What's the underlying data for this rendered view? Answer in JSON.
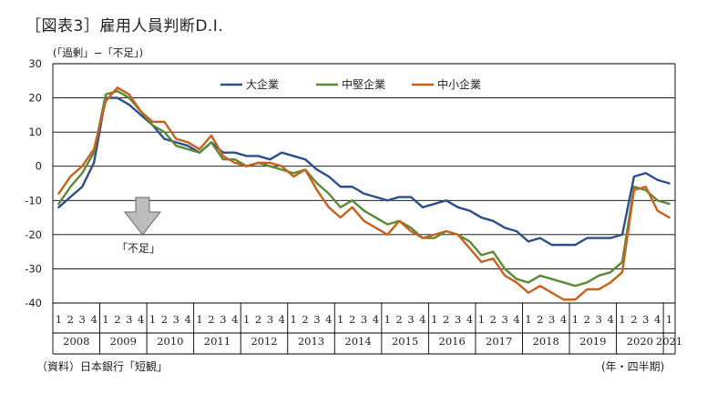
{
  "chart_data": {
    "type": "line",
    "title": "［図表3］雇用人員判断D.I.",
    "ylabel": "(「過剰」−「不足」)",
    "xlabel_unit": "(年・四半期)",
    "source": "（資料）日本銀行「短観」",
    "annotation": "「不足」",
    "ylim": [
      -40,
      30
    ],
    "yticks": [
      -40,
      -30,
      -20,
      -10,
      0,
      10,
      20,
      30
    ],
    "grid": "horizontal",
    "legend_position": "top-center",
    "quarter_labels": [
      "1",
      "2",
      "3",
      "4",
      "1",
      "2",
      "3",
      "4",
      "1",
      "2",
      "3",
      "4",
      "1",
      "2",
      "3",
      "4",
      "1",
      "2",
      "3",
      "4",
      "1",
      "2",
      "3",
      "4",
      "1",
      "2",
      "3",
      "4",
      "1",
      "2",
      "3",
      "4",
      "1",
      "2",
      "3",
      "4",
      "1",
      "2",
      "3",
      "4",
      "1",
      "2",
      "3",
      "4",
      "1",
      "2",
      "3",
      "4",
      "1",
      "2",
      "3",
      "4",
      "1"
    ],
    "years": [
      {
        "label": "2008",
        "quarters": 4
      },
      {
        "label": "2009",
        "quarters": 4
      },
      {
        "label": "2010",
        "quarters": 4
      },
      {
        "label": "2011",
        "quarters": 4
      },
      {
        "label": "2012",
        "quarters": 4
      },
      {
        "label": "2013",
        "quarters": 4
      },
      {
        "label": "2014",
        "quarters": 4
      },
      {
        "label": "2015",
        "quarters": 4
      },
      {
        "label": "2016",
        "quarters": 4
      },
      {
        "label": "2017",
        "quarters": 4
      },
      {
        "label": "2018",
        "quarters": 4
      },
      {
        "label": "2019",
        "quarters": 4
      },
      {
        "label": "2020",
        "quarters": 4
      },
      {
        "label": "2021",
        "quarters": 1
      }
    ],
    "series": [
      {
        "name": "大企業",
        "color": "#2e4d8c",
        "values": [
          -12,
          -9,
          -6,
          1,
          20,
          20,
          18,
          15,
          12,
          8,
          7,
          6,
          4,
          7,
          4,
          4,
          3,
          3,
          2,
          4,
          3,
          2,
          -1,
          -3,
          -6,
          -6,
          -8,
          -9,
          -10,
          -9,
          -9,
          -12,
          -11,
          -10,
          -12,
          -13,
          -15,
          -16,
          -18,
          -19,
          -22,
          -21,
          -23,
          -23,
          -23,
          -21,
          -21,
          -21,
          -20,
          -3,
          -2,
          -4,
          -5
        ]
      },
      {
        "name": "中堅企業",
        "color": "#5b8a35",
        "values": [
          -11,
          -6,
          -2,
          4,
          21,
          22,
          20,
          16,
          12,
          10,
          6,
          5,
          4,
          7,
          2,
          2,
          0,
          1,
          0,
          -1,
          -2,
          -1,
          -5,
          -8,
          -12,
          -10,
          -13,
          -15,
          -17,
          -16,
          -18,
          -21,
          -21,
          -19,
          -20,
          -22,
          -26,
          -25,
          -30,
          -33,
          -34,
          -32,
          -33,
          -34,
          -35,
          -34,
          -32,
          -31,
          -28,
          -6,
          -7,
          -10,
          -11
        ]
      },
      {
        "name": "中小企業",
        "color": "#c8601e",
        "values": [
          -8,
          -3,
          0,
          5,
          19,
          23,
          21,
          16,
          13,
          13,
          8,
          7,
          5,
          9,
          3,
          1,
          0,
          1,
          1,
          0,
          -3,
          -1,
          -7,
          -12,
          -15,
          -12,
          -16,
          -18,
          -20,
          -16,
          -19,
          -21,
          -20,
          -19,
          -20,
          -24,
          -28,
          -27,
          -32,
          -34,
          -37,
          -35,
          -37,
          -39,
          -39,
          -36,
          -36,
          -34,
          -31,
          -7,
          -6,
          -13,
          -15
        ]
      }
    ]
  }
}
